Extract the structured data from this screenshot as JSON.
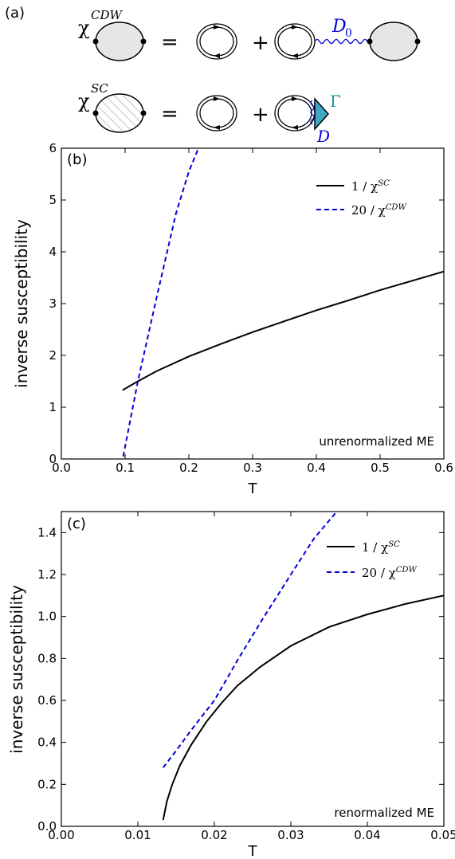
{
  "panel_a": {
    "label": "(a)",
    "row1": {
      "lhs_symbol": "χ",
      "lhs_sup": "CDW",
      "eq": "=",
      "plus": "+",
      "propagator_symbol": "D",
      "propagator_sub": "0"
    },
    "row2": {
      "lhs_symbol": "χ",
      "lhs_sup": "SC",
      "eq": "=",
      "plus": "+",
      "vertex_symbol": "Γ",
      "propagator_symbol": "D"
    }
  },
  "colors": {
    "black": "#000000",
    "blue": "#0000dd",
    "teal": "#1f8fa6",
    "teal_fill": "#3fa7c4",
    "bubble_fill": "#e6e6e6",
    "hatch": "#c8c8c8"
  },
  "chart_data": [
    {
      "panel_label": "(b)",
      "type": "line",
      "xlabel": "T",
      "ylabel": "inverse susceptibility",
      "xlim": [
        0.0,
        0.6
      ],
      "ylim": [
        0,
        6
      ],
      "xticks": [
        0.0,
        0.1,
        0.2,
        0.3,
        0.4,
        0.5,
        0.6
      ],
      "xtick_labels": [
        "0.0",
        "0.1",
        "0.2",
        "0.3",
        "0.4",
        "0.5",
        "0.6"
      ],
      "yticks": [
        0,
        1,
        2,
        3,
        4,
        5,
        6
      ],
      "ytick_labels": [
        "0",
        "1",
        "2",
        "3",
        "4",
        "5",
        "6"
      ],
      "annotation": "unrenormalized ME",
      "legend_position": "top-right",
      "series": [
        {
          "name": "1 / χ",
          "name_sup": "SC",
          "style": "solid",
          "color": "#000000",
          "x": [
            0.096,
            0.12,
            0.15,
            0.2,
            0.25,
            0.3,
            0.35,
            0.4,
            0.45,
            0.5,
            0.55,
            0.6
          ],
          "y": [
            1.33,
            1.5,
            1.7,
            1.98,
            2.22,
            2.45,
            2.66,
            2.87,
            3.06,
            3.26,
            3.44,
            3.62
          ]
        },
        {
          "name": "20 / χ",
          "name_sup": "CDW",
          "style": "dashed",
          "color": "#0000dd",
          "x": [
            0.097,
            0.12,
            0.15,
            0.18,
            0.2,
            0.215
          ],
          "y": [
            0.05,
            1.5,
            3.15,
            4.75,
            5.55,
            6.0
          ]
        }
      ]
    },
    {
      "panel_label": "(c)",
      "type": "line",
      "xlabel": "T",
      "ylabel": "inverse susceptibility",
      "xlim": [
        0.0,
        0.05
      ],
      "ylim": [
        0.0,
        1.5
      ],
      "xticks": [
        0.0,
        0.01,
        0.02,
        0.03,
        0.04,
        0.05
      ],
      "xtick_labels": [
        "0.00",
        "0.01",
        "0.02",
        "0.03",
        "0.04",
        "0.05"
      ],
      "yticks": [
        0.0,
        0.2,
        0.4,
        0.6,
        0.8,
        1.0,
        1.2,
        1.4
      ],
      "ytick_labels": [
        "0.0",
        "0.2",
        "0.4",
        "0.6",
        "0.8",
        "1.0",
        "1.2",
        "1.4"
      ],
      "annotation": "renormalized ME",
      "legend_position": "top-right",
      "series": [
        {
          "name": "1 / χ",
          "name_sup": "SC",
          "style": "solid",
          "color": "#000000",
          "x": [
            0.0133,
            0.0138,
            0.0145,
            0.0155,
            0.017,
            0.019,
            0.021,
            0.023,
            0.026,
            0.03,
            0.035,
            0.04,
            0.045,
            0.05
          ],
          "y": [
            0.03,
            0.12,
            0.2,
            0.29,
            0.39,
            0.5,
            0.59,
            0.67,
            0.76,
            0.86,
            0.95,
            1.01,
            1.06,
            1.1
          ]
        },
        {
          "name": "20 / χ",
          "name_sup": "CDW",
          "style": "dashed",
          "color": "#0000dd",
          "x": [
            0.0133,
            0.015,
            0.017,
            0.02,
            0.023,
            0.026,
            0.03,
            0.033,
            0.036
          ],
          "y": [
            0.28,
            0.36,
            0.46,
            0.6,
            0.79,
            0.97,
            1.2,
            1.37,
            1.5
          ]
        }
      ]
    }
  ]
}
